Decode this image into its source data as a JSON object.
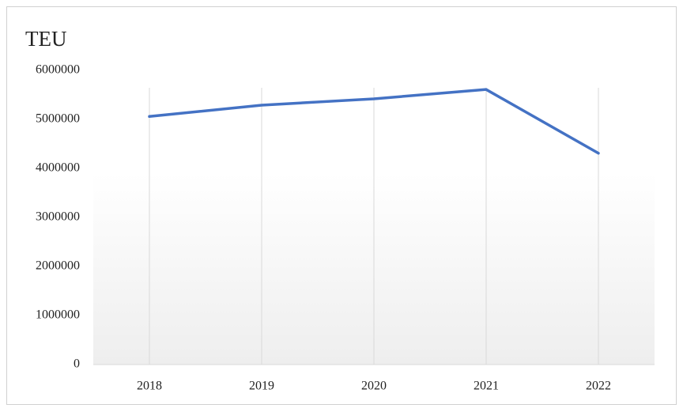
{
  "chart_data": {
    "type": "line",
    "y_label": "TEU",
    "categories": [
      "2018",
      "2019",
      "2020",
      "2021",
      "2022"
    ],
    "series": [
      {
        "name": "TEU",
        "color": "#4472c4",
        "values": [
          5060000,
          5290000,
          5420000,
          5610000,
          4310000
        ]
      }
    ],
    "ylim": [
      0,
      6000000
    ],
    "yticks": [
      0,
      1000000,
      2000000,
      3000000,
      4000000,
      5000000,
      6000000
    ],
    "grid": "x"
  }
}
